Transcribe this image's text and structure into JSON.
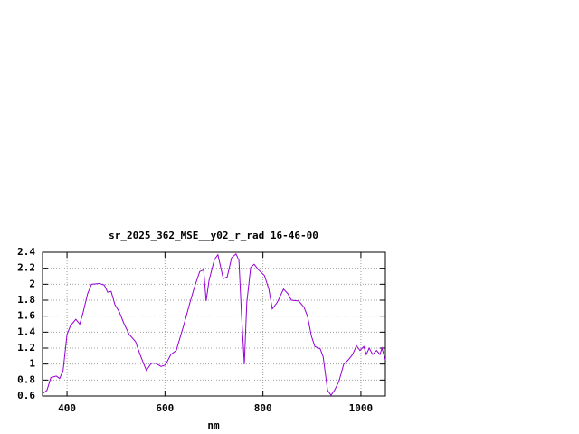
{
  "chart_data": {
    "type": "line",
    "title": "sr_2025_362_MSE__y02_r_rad 16-46-00",
    "xlabel": "nm",
    "xlim": [
      350,
      1050
    ],
    "xticks": [
      400,
      600,
      800,
      1000
    ],
    "ylim": [
      0.6,
      2.4
    ],
    "yticks": [
      0.6,
      0.8,
      1,
      1.2,
      1.4,
      1.6,
      1.8,
      2,
      2.2,
      2.4
    ],
    "grid": true,
    "series": [
      {
        "color": "#9400d3",
        "x": [
          350,
          359,
          367,
          378,
          385,
          392,
          400,
          407,
          418,
          426,
          433,
          442,
          450,
          466,
          476,
          483,
          490,
          498,
          507,
          516,
          527,
          540,
          549,
          562,
          572,
          581,
          592,
          601,
          612,
          623,
          638,
          651,
          660,
          671,
          679,
          684,
          690,
          701,
          708,
          719,
          727,
          736,
          745,
          751,
          756,
          762,
          767,
          775,
          782,
          791,
          803,
          812,
          819,
          829,
          842,
          851,
          858,
          873,
          884,
          891,
          899,
          906,
          917,
          923,
          932,
          939,
          946,
          955,
          965,
          974,
          983,
          991,
          998,
          1006,
          1011,
          1017,
          1024,
          1032,
          1039,
          1043,
          1050
        ],
        "values": [
          0.63,
          0.67,
          0.83,
          0.85,
          0.82,
          0.92,
          1.37,
          1.48,
          1.56,
          1.5,
          1.65,
          1.88,
          2.0,
          2.01,
          1.99,
          1.9,
          1.91,
          1.74,
          1.65,
          1.51,
          1.37,
          1.28,
          1.12,
          0.92,
          1.01,
          1.01,
          0.97,
          0.99,
          1.12,
          1.17,
          1.48,
          1.77,
          1.96,
          2.16,
          2.18,
          1.79,
          2.05,
          2.31,
          2.37,
          2.07,
          2.09,
          2.33,
          2.38,
          2.3,
          1.65,
          1.0,
          1.77,
          2.21,
          2.25,
          2.18,
          2.11,
          1.94,
          1.69,
          1.77,
          1.94,
          1.88,
          1.8,
          1.79,
          1.71,
          1.6,
          1.35,
          1.22,
          1.19,
          1.09,
          0.67,
          0.61,
          0.67,
          0.78,
          1.0,
          1.05,
          1.12,
          1.23,
          1.17,
          1.22,
          1.12,
          1.2,
          1.12,
          1.17,
          1.12,
          1.2,
          1.05
        ]
      }
    ]
  }
}
